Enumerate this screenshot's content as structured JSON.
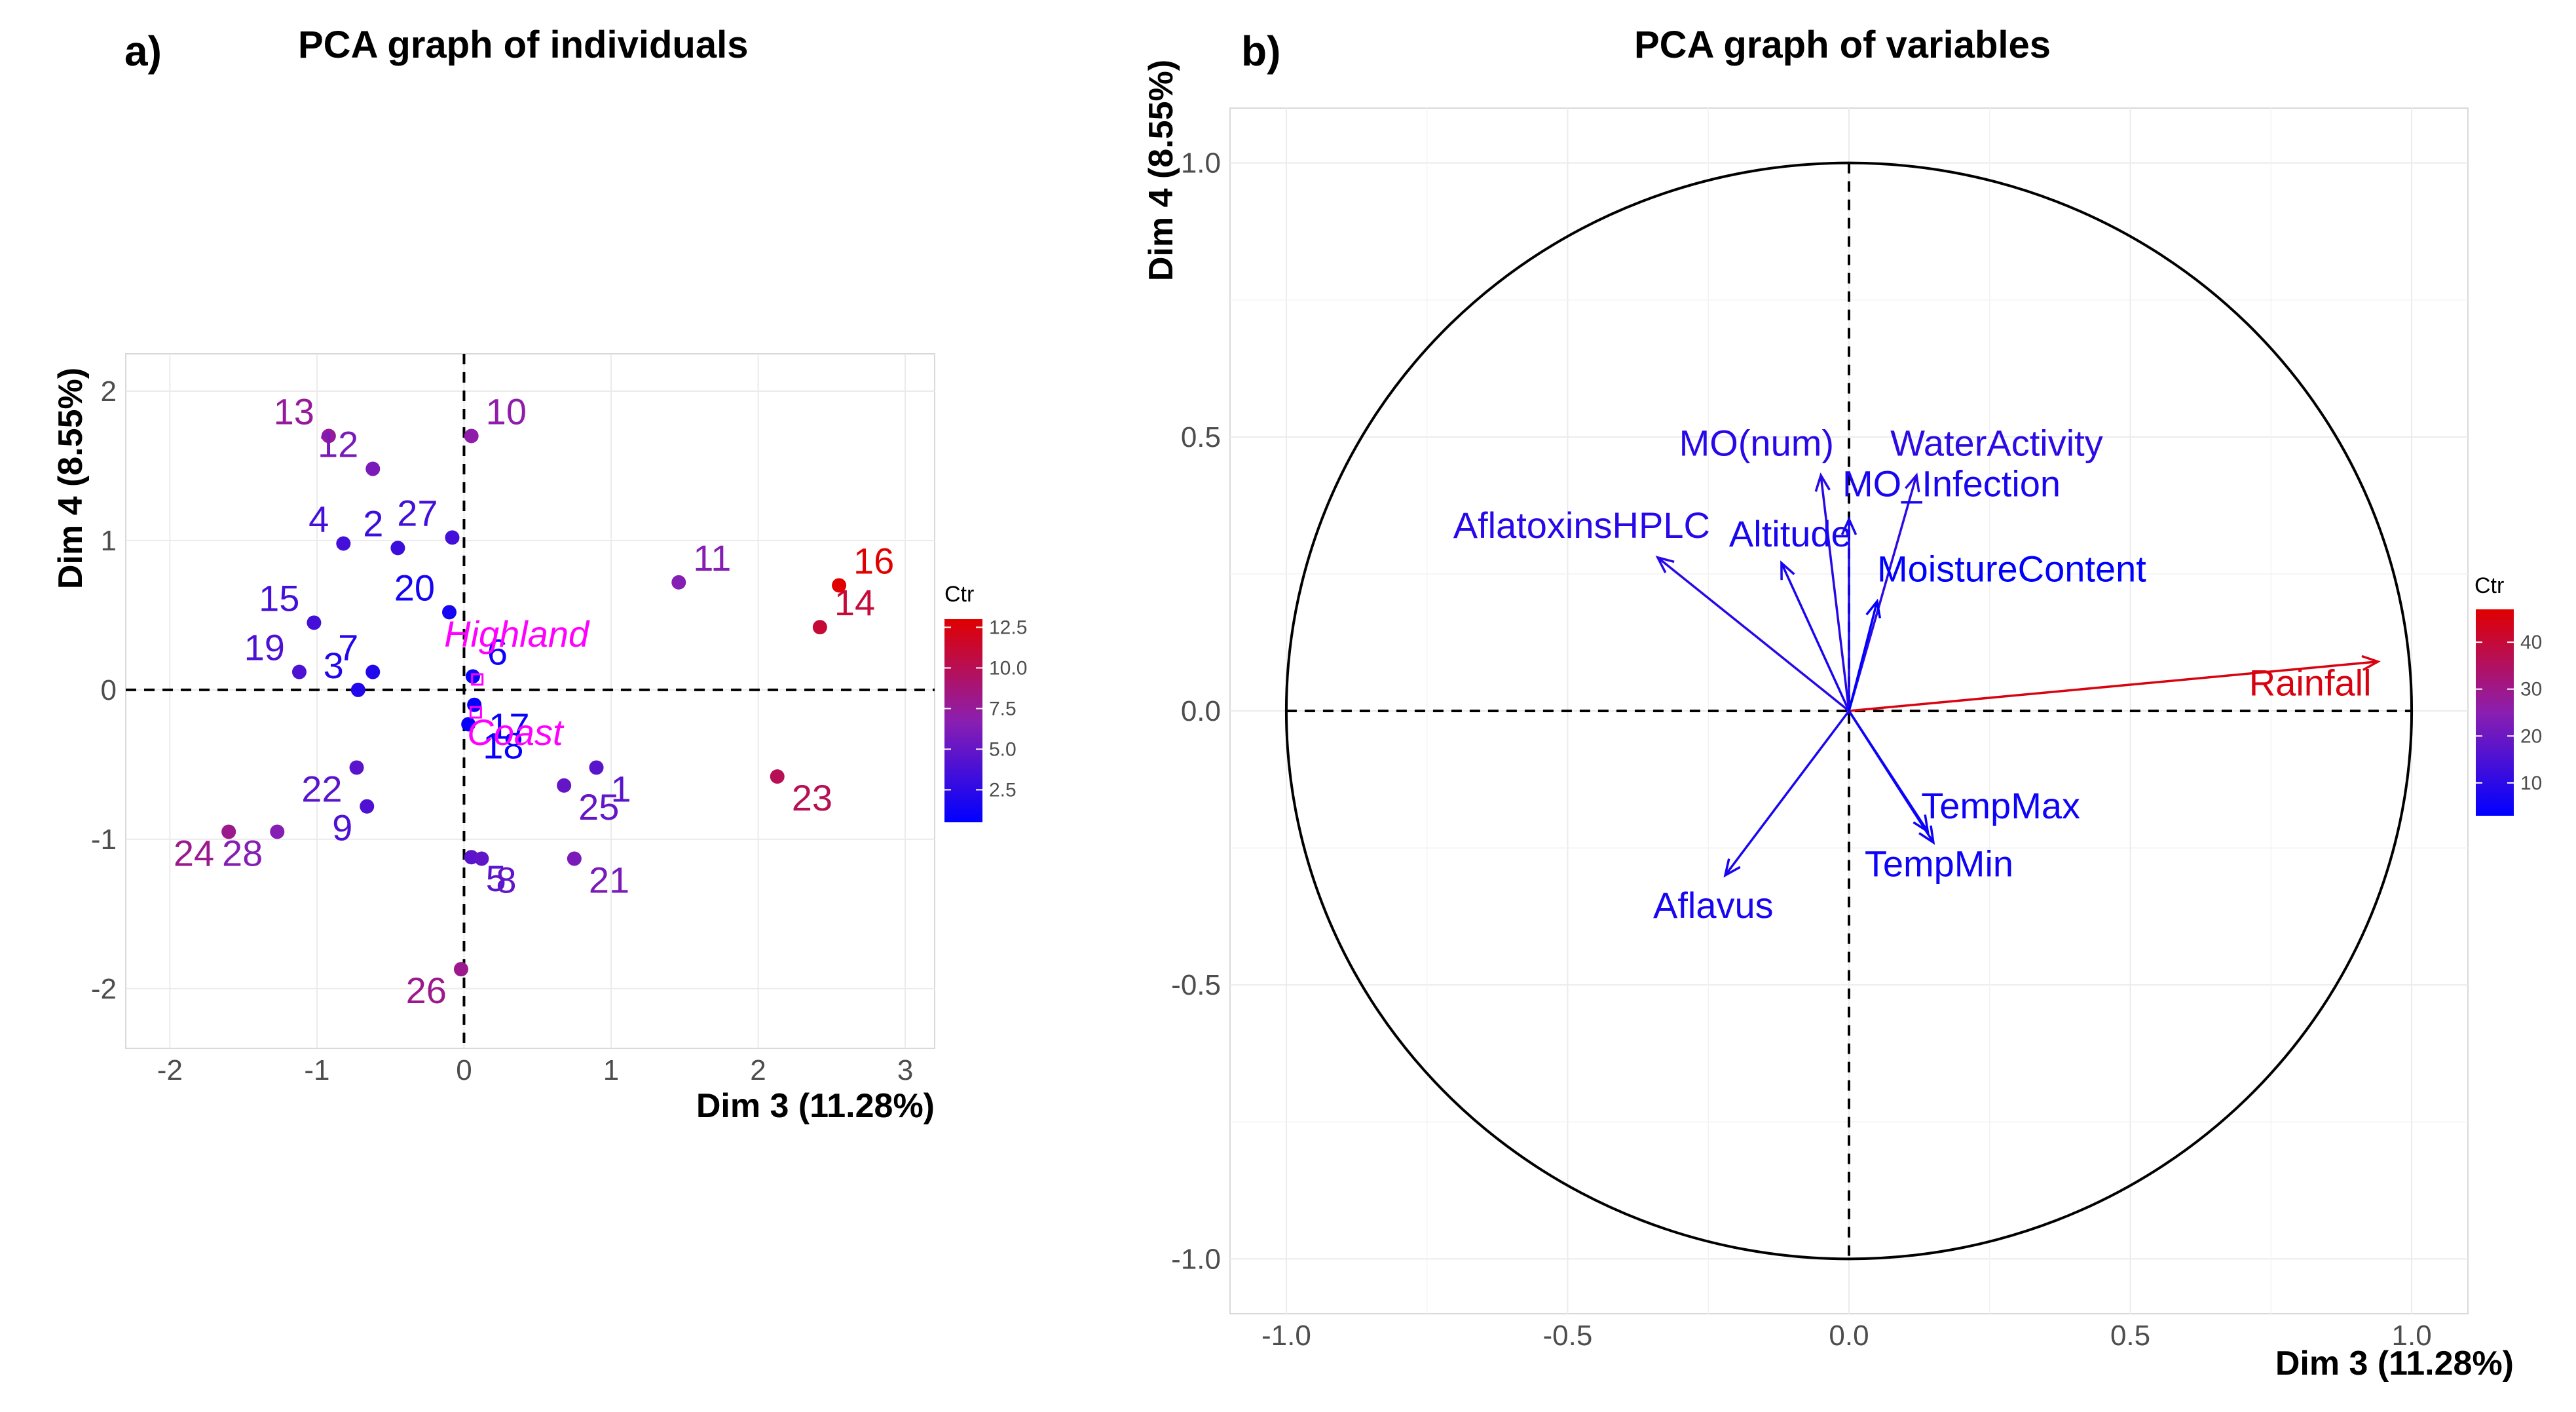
{
  "panel_a": {
    "label": "a)",
    "chart_data": {
      "type": "scatter",
      "title": "PCA graph of individuals",
      "xlabel": "Dim 3 (11.28%)",
      "ylabel": "Dim 4 (8.55%)",
      "xlim": [
        -2.3,
        3.2
      ],
      "ylim": [
        -2.4,
        2.25
      ],
      "xticks": [
        -2,
        -1,
        0,
        1,
        2,
        3
      ],
      "yticks": [
        -2,
        -1,
        0,
        1,
        2
      ],
      "xtick_labels": [
        "-2",
        "-1",
        "0",
        "1",
        "2",
        "3"
      ],
      "ytick_labels": [
        "-2",
        "-1",
        "0",
        "1",
        "2"
      ],
      "legend": {
        "title": "Ctr",
        "ticks": [
          "2.5",
          "5.0",
          "7.5",
          "10.0",
          "12.5"
        ],
        "tick_values": [
          2.5,
          5.0,
          7.5,
          10.0,
          12.5
        ],
        "range": [
          0.5,
          13.0
        ]
      },
      "points": [
        {
          "label": "1",
          "x": 0.9,
          "y": -0.52,
          "ctr": 4.5
        },
        {
          "label": "2",
          "x": -0.45,
          "y": 0.95,
          "ctr": 3.2
        },
        {
          "label": "3",
          "x": -0.72,
          "y": 0.0,
          "ctr": 2.0
        },
        {
          "label": "4",
          "x": -0.82,
          "y": 0.98,
          "ctr": 3.5
        },
        {
          "label": "5",
          "x": 0.05,
          "y": -1.12,
          "ctr": 4.5
        },
        {
          "label": "6",
          "x": 0.06,
          "y": 0.09,
          "ctr": 1.0
        },
        {
          "label": "7",
          "x": -0.62,
          "y": 0.12,
          "ctr": 2.0
        },
        {
          "label": "8",
          "x": 0.12,
          "y": -1.13,
          "ctr": 4.8
        },
        {
          "label": "9",
          "x": -0.66,
          "y": -0.78,
          "ctr": 4.0
        },
        {
          "label": "10",
          "x": 0.05,
          "y": 1.7,
          "ctr": 7.0
        },
        {
          "label": "11",
          "x": 1.46,
          "y": 0.72,
          "ctr": 6.5
        },
        {
          "label": "12",
          "x": -0.62,
          "y": 1.48,
          "ctr": 6.0
        },
        {
          "label": "13",
          "x": -0.92,
          "y": 1.7,
          "ctr": 7.5
        },
        {
          "label": "14",
          "x": 2.42,
          "y": 0.42,
          "ctr": 11.0
        },
        {
          "label": "15",
          "x": -1.02,
          "y": 0.45,
          "ctr": 3.5
        },
        {
          "label": "16",
          "x": 2.55,
          "y": 0.7,
          "ctr": 13.0
        },
        {
          "label": "17",
          "x": 0.07,
          "y": -0.1,
          "ctr": 0.8
        },
        {
          "label": "18",
          "x": 0.03,
          "y": -0.23,
          "ctr": 0.8
        },
        {
          "label": "19",
          "x": -1.12,
          "y": 0.12,
          "ctr": 4.0
        },
        {
          "label": "20",
          "x": -0.1,
          "y": 0.52,
          "ctr": 1.5
        },
        {
          "label": "21",
          "x": 0.75,
          "y": -1.13,
          "ctr": 6.0
        },
        {
          "label": "22",
          "x": -0.73,
          "y": -0.52,
          "ctr": 4.5
        },
        {
          "label": "23",
          "x": 2.13,
          "y": -0.58,
          "ctr": 10.0
        },
        {
          "label": "24",
          "x": -1.6,
          "y": -0.95,
          "ctr": 8.0
        },
        {
          "label": "25",
          "x": 0.68,
          "y": -0.64,
          "ctr": 5.0
        },
        {
          "label": "26",
          "x": -0.02,
          "y": -1.87,
          "ctr": 8.0
        },
        {
          "label": "27",
          "x": -0.08,
          "y": 1.02,
          "ctr": 3.5
        },
        {
          "label": "28",
          "x": -1.27,
          "y": -0.95,
          "ctr": 6.5
        }
      ],
      "supplementary": [
        {
          "label": "Highland",
          "x": 0.09,
          "y": 0.07
        },
        {
          "label": "Coast",
          "x": 0.08,
          "y": -0.15
        }
      ]
    }
  },
  "panel_b": {
    "label": "b)",
    "chart_data": {
      "type": "scatter",
      "subtype": "correlation-circle",
      "title": "PCA graph of variables",
      "xlabel": "Dim 3 (11.28%)",
      "ylabel": "Dim 4 (8.55%)",
      "xlim": [
        -1.1,
        1.1
      ],
      "ylim": [
        -1.1,
        1.1
      ],
      "xticks": [
        -1.0,
        -0.5,
        0.0,
        0.5,
        1.0
      ],
      "yticks": [
        -1.0,
        -0.5,
        0.0,
        0.5,
        1.0
      ],
      "xtick_labels": [
        "-1.0",
        "-0.5",
        "0.0",
        "0.5",
        "1.0"
      ],
      "ytick_labels": [
        "-1.0",
        "-0.5",
        "0.0",
        "0.5",
        "1.0"
      ],
      "legend": {
        "title": "Ctr",
        "ticks": [
          "10",
          "20",
          "30",
          "40"
        ],
        "tick_values": [
          10,
          20,
          30,
          40
        ],
        "range": [
          3,
          47
        ]
      },
      "variables": [
        {
          "label": "Rainfall",
          "x": 0.94,
          "y": 0.09,
          "ctr": 45
        },
        {
          "label": "WaterActivity",
          "x": 0.12,
          "y": 0.43,
          "ctr": 10
        },
        {
          "label": "MO(num)",
          "x": -0.05,
          "y": 0.43,
          "ctr": 9
        },
        {
          "label": "MO_Infection",
          "x": 0.0,
          "y": 0.35,
          "ctr": 7
        },
        {
          "label": "AflatoxinsHPLC",
          "x": -0.34,
          "y": 0.28,
          "ctr": 9
        },
        {
          "label": "Altitude",
          "x": -0.12,
          "y": 0.27,
          "ctr": 7
        },
        {
          "label": "MoistureContent",
          "x": 0.05,
          "y": 0.2,
          "ctr": 3
        },
        {
          "label": "TempMax",
          "x": 0.14,
          "y": -0.22,
          "ctr": 5
        },
        {
          "label": "TempMin",
          "x": 0.15,
          "y": -0.24,
          "ctr": 5
        },
        {
          "label": "Aflavus",
          "x": -0.22,
          "y": -0.3,
          "ctr": 7
        }
      ]
    }
  }
}
